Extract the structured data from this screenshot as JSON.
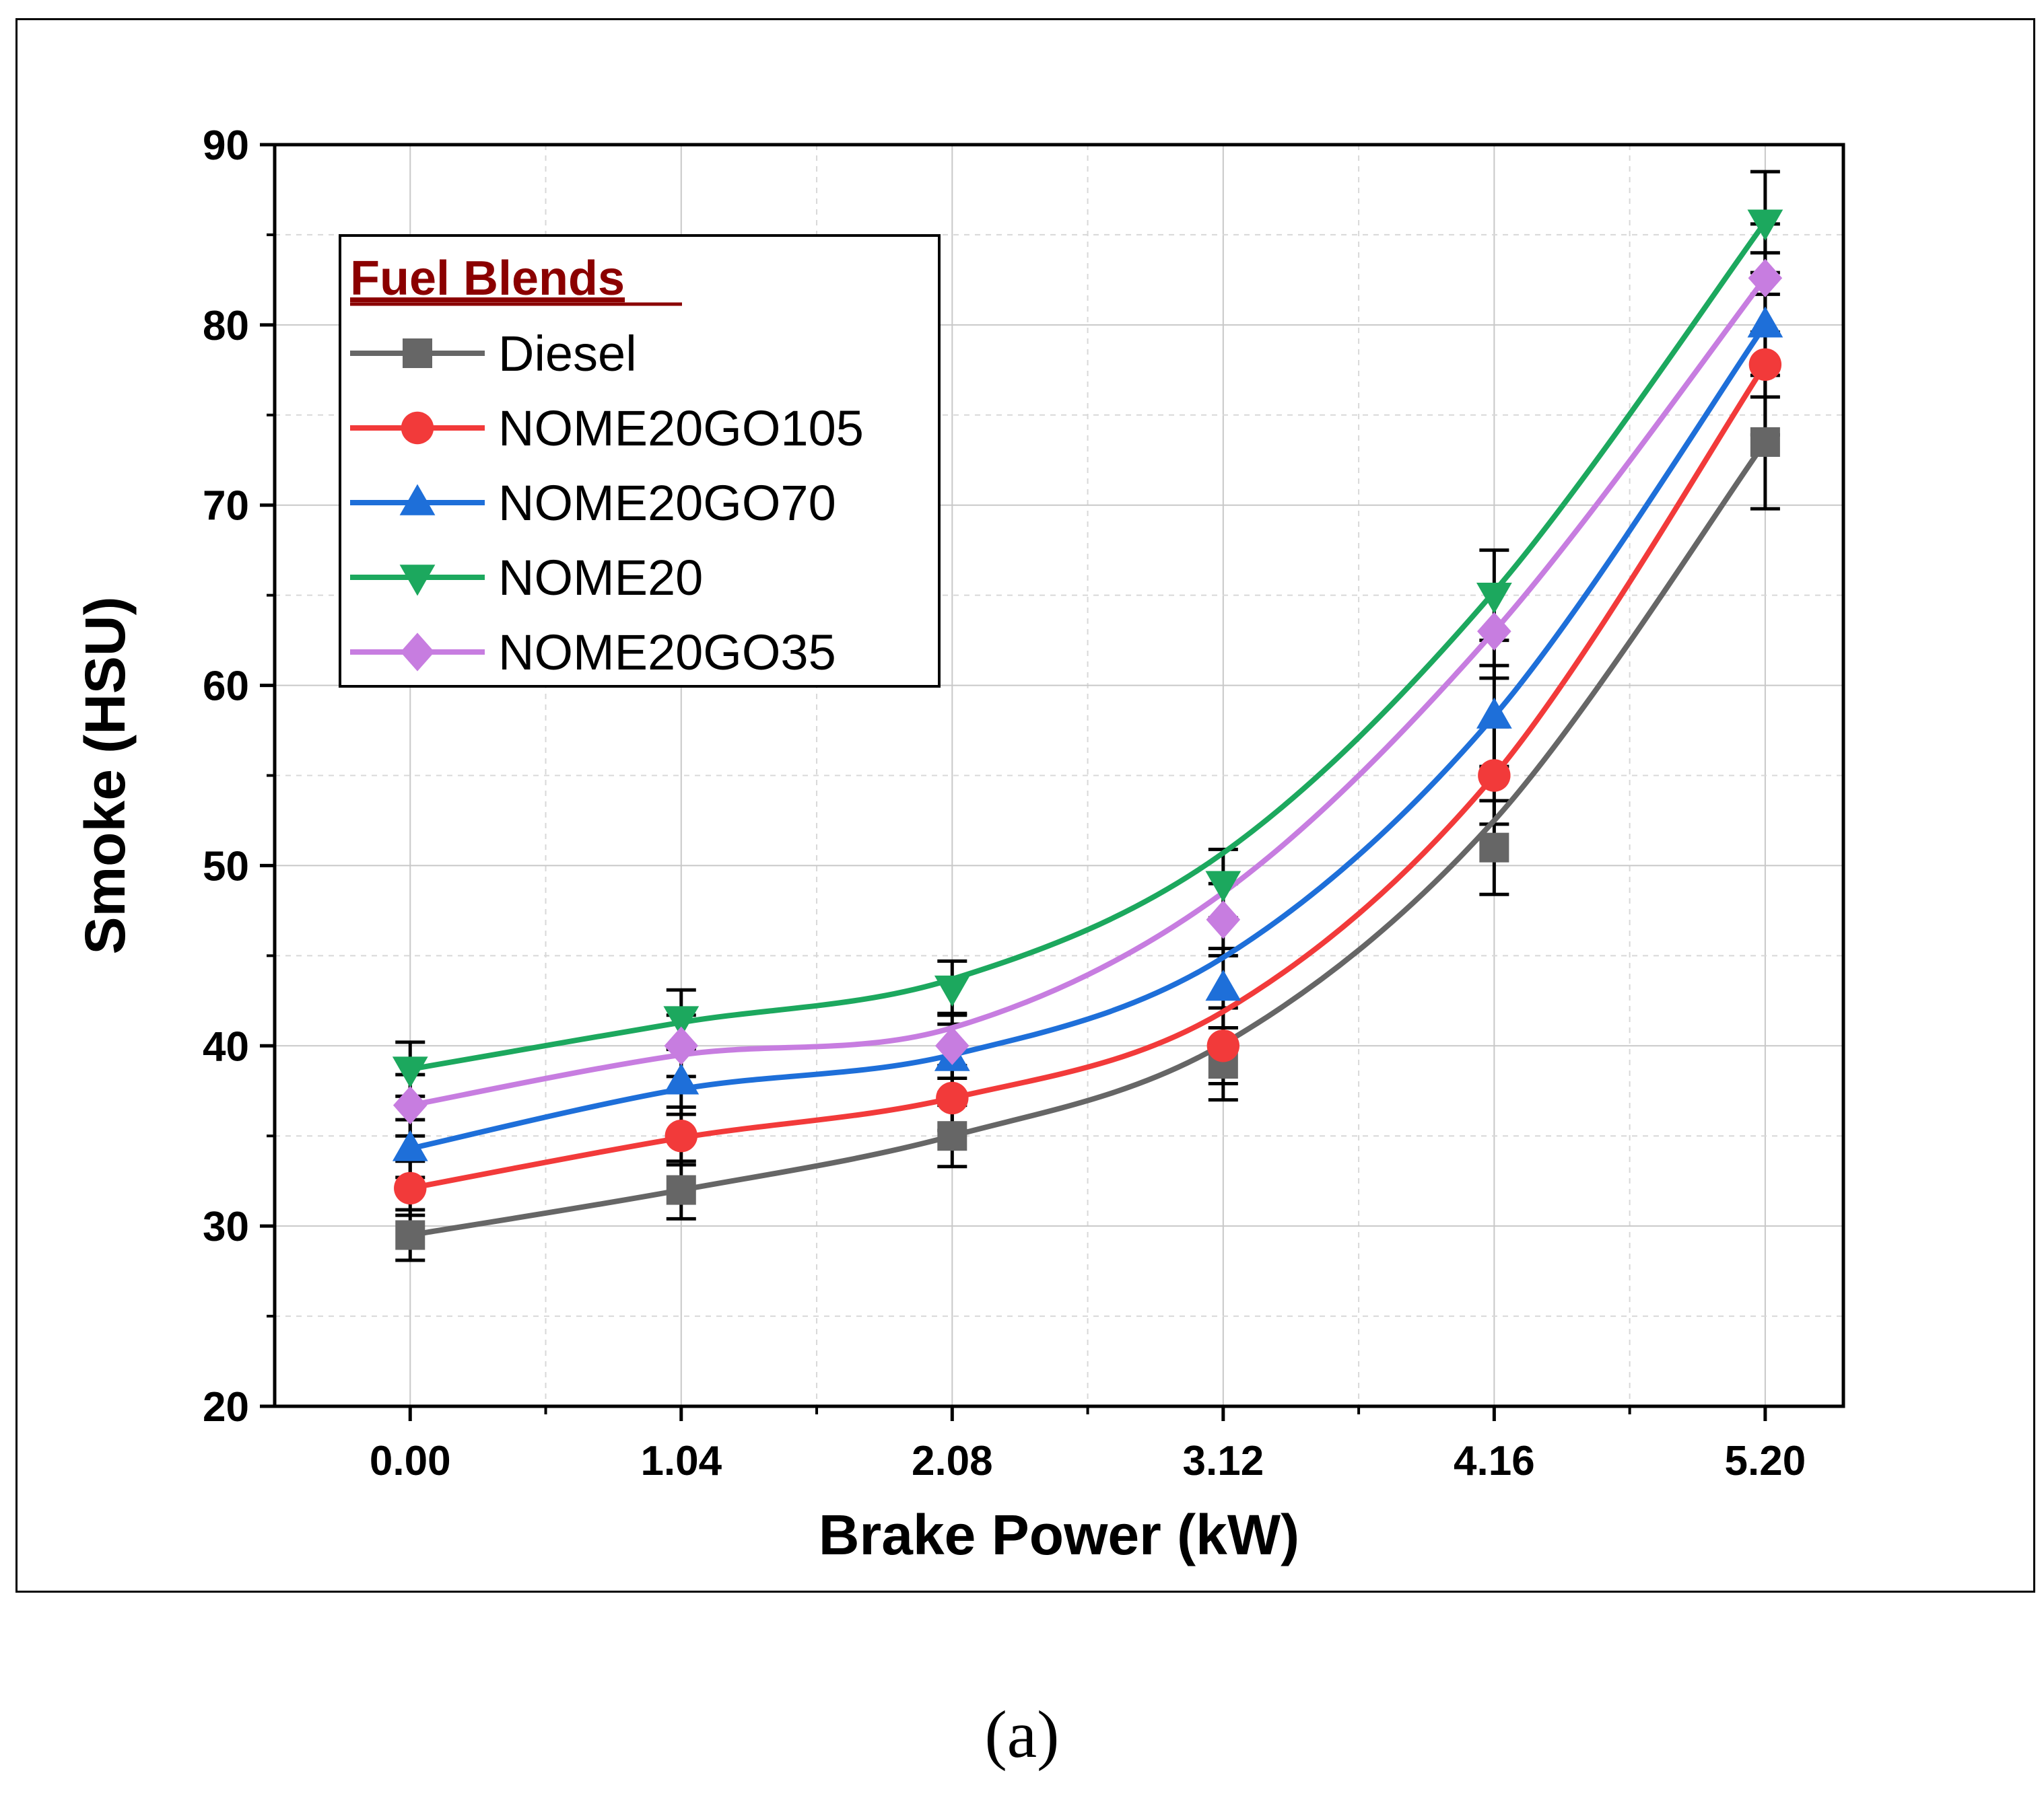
{
  "caption": "(a)",
  "chart_data": {
    "type": "line",
    "title": "",
    "xlabel": "Brake Power (kW)",
    "ylabel": "Smoke (HSU)",
    "x": [
      0.0,
      1.04,
      2.08,
      3.12,
      4.16,
      5.2
    ],
    "x_tick_labels": [
      "0.00",
      "1.04",
      "2.08",
      "3.12",
      "4.16",
      "5.20"
    ],
    "xlim": [
      -0.52,
      5.5
    ],
    "ylim": [
      20,
      90
    ],
    "y_ticks": [
      20,
      30,
      40,
      50,
      60,
      70,
      80,
      90
    ],
    "y_tick_labels": [
      "20",
      "30",
      "40",
      "50",
      "60",
      "70",
      "80",
      "90"
    ],
    "grid": true,
    "legend_title": "Fuel Blends",
    "legend_position": "top-left",
    "series": [
      {
        "name": "Diesel",
        "color": "#666666",
        "marker": "square",
        "values": [
          29.5,
          32.0,
          35.0,
          39.0,
          51.0,
          73.5
        ],
        "fit": [
          29.5,
          32.0,
          35.0,
          40.1,
          52.5,
          73.5
        ],
        "errors": [
          1.4,
          1.6,
          1.7,
          2.0,
          2.6,
          3.7
        ]
      },
      {
        "name": "NOME20GO105",
        "color": "#F23A3A",
        "marker": "circle",
        "values": [
          32.1,
          35.0,
          37.1,
          40.0,
          55.0,
          77.8
        ],
        "fit": [
          32.1,
          34.9,
          37.1,
          41.9,
          55.0,
          77.8
        ],
        "errors": [
          1.5,
          1.6,
          1.8,
          2.1,
          2.7,
          3.9
        ]
      },
      {
        "name": "NOME20GO70",
        "color": "#1E6FD9",
        "marker": "triangle-up",
        "values": [
          34.3,
          38.0,
          39.3,
          43.2,
          58.3,
          80.0
        ],
        "fit": [
          34.3,
          37.6,
          39.5,
          44.9,
          58.3,
          80.0
        ],
        "errors": [
          1.6,
          1.8,
          1.9,
          2.2,
          2.8,
          4.0
        ]
      },
      {
        "name": "NOME20",
        "color": "#1CA85E",
        "marker": "triangle-down",
        "values": [
          38.7,
          41.5,
          43.2,
          49.0,
          65.0,
          85.7
        ],
        "fit": [
          38.7,
          41.3,
          43.7,
          50.7,
          65.2,
          85.7
        ],
        "errors": [
          1.5,
          1.6,
          1.5,
          1.9,
          2.5,
          2.8
        ]
      },
      {
        "name": "NOME20GO35",
        "color": "#C77DE0",
        "marker": "diamond",
        "values": [
          36.7,
          40.0,
          40.0,
          47.0,
          63.0,
          82.6
        ],
        "fit": [
          36.7,
          39.5,
          41.0,
          48.5,
          63.0,
          82.6
        ],
        "errors": [
          1.7,
          1.7,
          1.8,
          2.0,
          2.6,
          3.0
        ]
      }
    ]
  }
}
